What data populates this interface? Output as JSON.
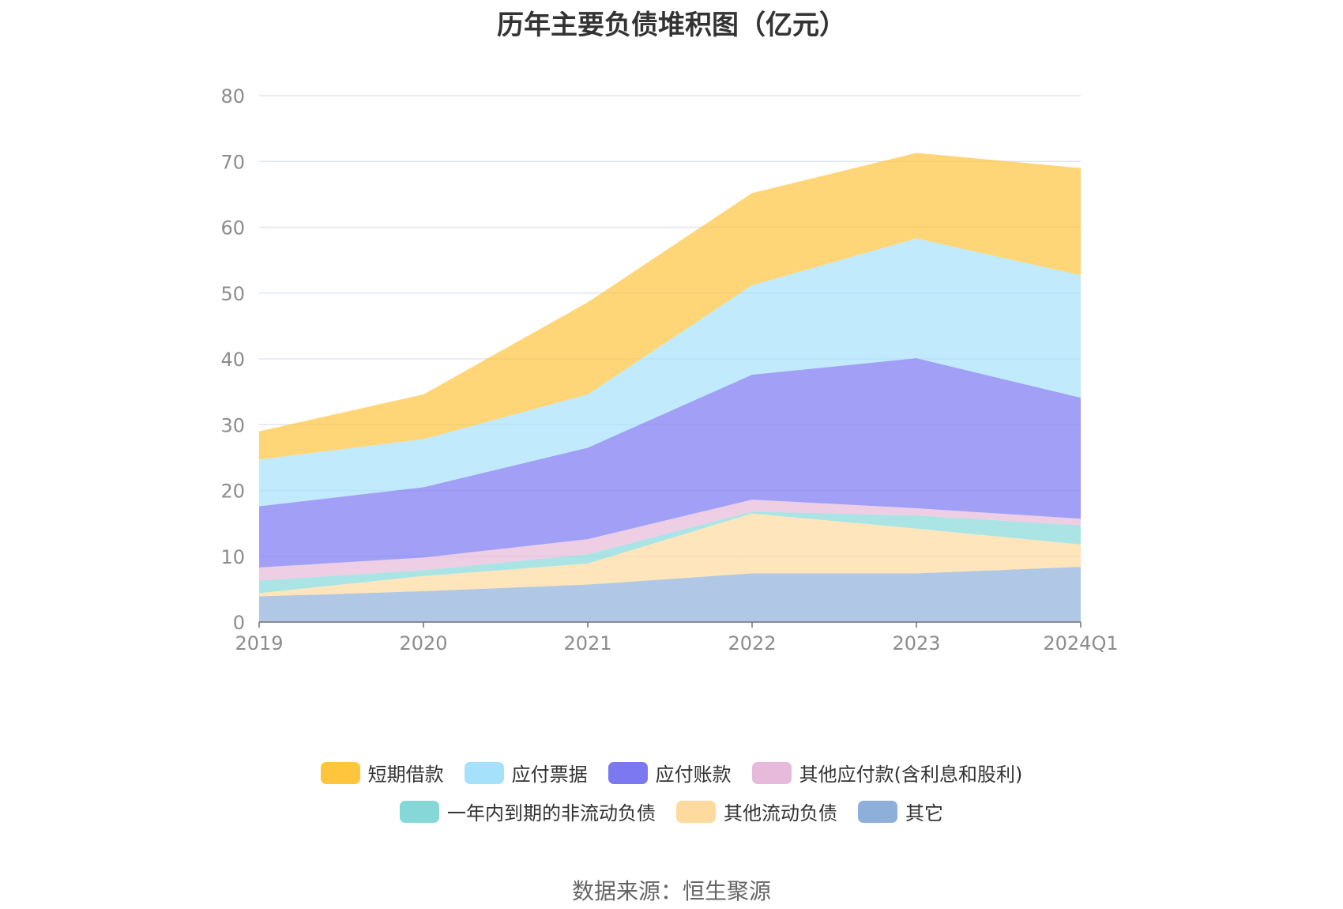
{
  "chart_data": {
    "type": "area",
    "stacked": true,
    "title": "历年主要负债堆积图（亿元）",
    "categories": [
      "2019",
      "2020",
      "2021",
      "2022",
      "2023",
      "2024Q1"
    ],
    "ylim": [
      0,
      80
    ],
    "yticks": [
      0,
      10,
      20,
      30,
      40,
      50,
      60,
      70,
      80
    ],
    "grid": true,
    "legend_position": "bottom",
    "series": [
      {
        "name": "其它",
        "color": "#8fafdb",
        "values": [
          3.9,
          4.7,
          5.7,
          7.4,
          7.4,
          8.4
        ]
      },
      {
        "name": "其他流动负债",
        "color": "#ffda9e",
        "values": [
          0.5,
          2.3,
          3.2,
          9.1,
          6.8,
          3.4
        ]
      },
      {
        "name": "一年内到期的非流动负债",
        "color": "#86d8d8",
        "values": [
          1.9,
          0.9,
          1.4,
          0.3,
          2.0,
          2.9
        ]
      },
      {
        "name": "其他应付款(含利息和股利)",
        "color": "#e7b9da",
        "values": [
          2.0,
          1.9,
          2.3,
          1.8,
          1.1,
          1.0
        ]
      },
      {
        "name": "应付账款",
        "color": "#7b78f2",
        "values": [
          9.3,
          10.7,
          13.9,
          19.0,
          22.8,
          18.4
        ]
      },
      {
        "name": "应付票据",
        "color": "#a6e1fb",
        "values": [
          7.1,
          7.3,
          8.1,
          13.6,
          18.2,
          18.6
        ]
      },
      {
        "name": "短期借款",
        "color": "#ffc53d",
        "values": [
          4.3,
          6.8,
          14.0,
          14.0,
          13.0,
          16.3
        ]
      }
    ]
  },
  "legend": {
    "row1": [
      {
        "label": "短期借款",
        "color": "#ffc53d"
      },
      {
        "label": "应付票据",
        "color": "#a6e1fb"
      },
      {
        "label": "应付账款",
        "color": "#7b78f2"
      },
      {
        "label": "其他应付款(含利息和股利)",
        "color": "#e7b9da"
      }
    ],
    "row2": [
      {
        "label": "一年内到期的非流动负债",
        "color": "#86d8d8"
      },
      {
        "label": "其他流动负债",
        "color": "#ffda9e"
      },
      {
        "label": "其它",
        "color": "#8fafdb"
      }
    ]
  },
  "source": "数据来源：恒生聚源"
}
